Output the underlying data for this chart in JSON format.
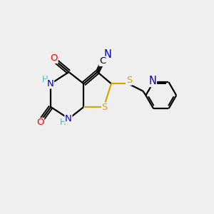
{
  "bg_color": "#efefef",
  "bond_color": "#000000",
  "atom_colors": {
    "N": "#0000cd",
    "O": "#ff0000",
    "S": "#ccaa00",
    "C": "#000000",
    "H": "#4ab5b5"
  },
  "figsize": [
    3.0,
    3.0
  ],
  "dpi": 100,
  "lw": 1.6,
  "dlw": 1.4,
  "doff": 0.08
}
